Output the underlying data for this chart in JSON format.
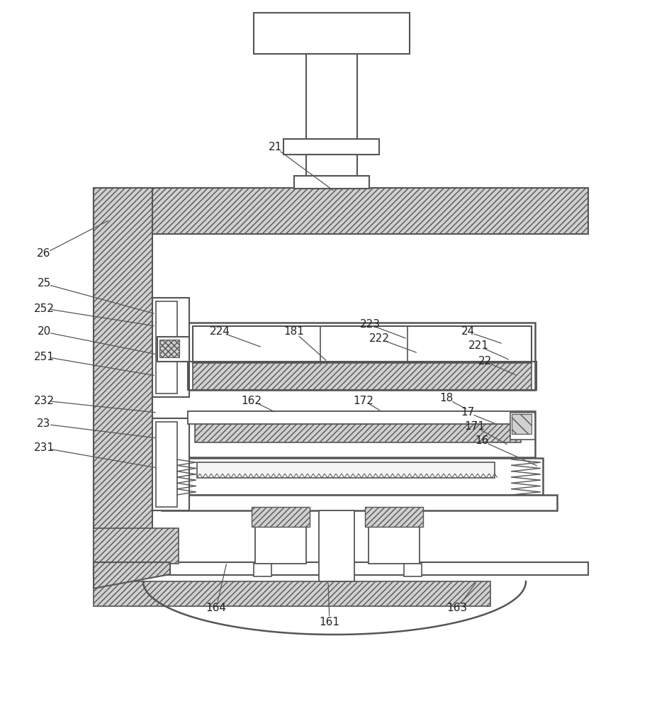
{
  "bg_color": "#ffffff",
  "line_color": "#555555",
  "fig_width": 9.44,
  "fig_height": 10.0,
  "label_fontsize": 11,
  "label_color": "#222222",
  "annotations": [
    [
      "21",
      388,
      208,
      472,
      270
    ],
    [
      "26",
      62,
      358,
      155,
      310
    ],
    [
      "25",
      62,
      400,
      220,
      443
    ],
    [
      "252",
      62,
      435,
      220,
      460
    ],
    [
      "20",
      62,
      468,
      222,
      500
    ],
    [
      "251",
      62,
      503,
      220,
      530
    ],
    [
      "232",
      62,
      565,
      222,
      582
    ],
    [
      "23",
      62,
      598,
      222,
      618
    ],
    [
      "231",
      62,
      632,
      222,
      660
    ],
    [
      "224",
      310,
      468,
      370,
      490
    ],
    [
      "181",
      415,
      468,
      462,
      510
    ],
    [
      "223",
      522,
      458,
      575,
      478
    ],
    [
      "222",
      535,
      478,
      590,
      498
    ],
    [
      "24",
      660,
      468,
      710,
      485
    ],
    [
      "221",
      675,
      488,
      720,
      508
    ],
    [
      "22",
      685,
      510,
      730,
      530
    ],
    [
      "162",
      355,
      565,
      390,
      582
    ],
    [
      "172",
      513,
      565,
      538,
      580
    ],
    [
      "18",
      630,
      562,
      660,
      578
    ],
    [
      "17",
      660,
      582,
      700,
      598
    ],
    [
      "171",
      670,
      602,
      718,
      628
    ],
    [
      "16",
      680,
      622,
      760,
      658
    ],
    [
      "164",
      305,
      858,
      320,
      793
    ],
    [
      "161",
      465,
      878,
      463,
      820
    ],
    [
      "163",
      645,
      858,
      673,
      820
    ]
  ]
}
